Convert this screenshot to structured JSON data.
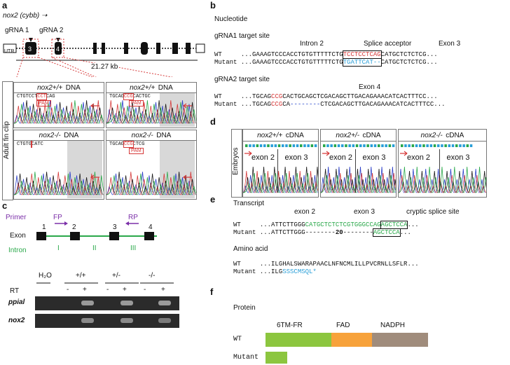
{
  "panel_a": {
    "letter": "a",
    "gene": "nox2 (cybb)",
    "arrow": "➝",
    "grna1": "gRNA 1",
    "grna2": "gRNA 2",
    "utr": "UTR",
    "scale": "21.27 kb",
    "side_label": "Adult fin clip",
    "boxes": [
      {
        "title_gene": "nox2+/+",
        "title_suffix": "DNA",
        "seq": "CTGTCCT",
        "seq_red": "CCT",
        "seq_end": "CAG",
        "pam": "PAM"
      },
      {
        "title_gene": "nox2+/+",
        "title_suffix": "DNA",
        "seq": "TGCAG",
        "seq_red": "CCG",
        "seq_end": "CACTGC",
        "pam": "PAM"
      },
      {
        "title_gene": "nox2-/-",
        "title_suffix": "DNA",
        "seq": "CTGTG",
        "seq_red": "",
        "seq_end": "CATC",
        "pam": ""
      },
      {
        "title_gene": "nox2-/-",
        "title_suffix": "DNA",
        "seq": "TGCAG",
        "seq_red": "CCG",
        "seq_end": "CTCG",
        "pam": "PAM"
      }
    ]
  },
  "panel_b": {
    "letter": "b",
    "heading": "Nucleotide",
    "site1_title": "gRNA1 target site",
    "site1_labels": {
      "intron": "Intron 2",
      "splice": "Splice acceptor",
      "exon": "Exon 3"
    },
    "site1_wt_name": "WT",
    "site1_wt_pre": "...GAAAGTCCCACCTGTGTTTTTCTG",
    "site1_wt_box": "TCCTCCTCAG",
    "site1_wt_post": "CATGCTCTCTCG...",
    "site1_mut_name": "Mutant",
    "site1_mut_pre": "...GAAAGTCCCACCTGTGTTTTTCTG",
    "site1_mut_box": "TGATTCAT--",
    "site1_mut_post": "CATGCTCTCTCG...",
    "site2_title": "gRNA2 target site",
    "site2_exon": "Exon 4",
    "site2_wt_name": "WT",
    "site2_wt_pre": "...TGCAG",
    "site2_wt_red": "CCG",
    "site2_wt_post": "CACTGCAGCTCGACAGCTTGACAGAAACATCACTTTCC...",
    "site2_mut_name": "Mutant",
    "site2_mut_pre": "...TGCAG",
    "site2_mut_red": "CCG",
    "site2_mut_mid": "CA",
    "site2_mut_dash": "--------",
    "site2_mut_post": "CTCGACAGCTTGACAGAAACATCACTTTCC..."
  },
  "panel_c": {
    "letter": "c",
    "primer": "Primer",
    "fp": "FP",
    "rp": "RP",
    "exon": "Exon",
    "intron": "Intron",
    "exons": [
      "1",
      "2",
      "3",
      "4"
    ],
    "introns": [
      "I",
      "II",
      "III"
    ],
    "gel_headers": [
      "H₂O",
      "+/+",
      "+/-",
      "-/-"
    ],
    "rt": "RT",
    "rt_marks": [
      "-",
      "+",
      "-",
      "+",
      "-",
      "+"
    ],
    "genes": [
      "ppial",
      "nox2"
    ]
  },
  "panel_d": {
    "letter": "d",
    "side_label": "Embryos",
    "boxes": [
      {
        "title_gene": "nox2+/+",
        "title_suffix": "cDNA",
        "exon_a": "exon 2",
        "exon_b": "exon 3"
      },
      {
        "title_gene": "nox2+/-",
        "title_suffix": "cDNA",
        "exon_a": "exon 2",
        "exon_b": "exon 3"
      },
      {
        "title_gene": "nox2-/-",
        "title_suffix": "cDNA",
        "exon_a": "exon 2",
        "exon_b": "exon 3"
      }
    ]
  },
  "panel_e": {
    "letter": "e",
    "transcript": "Transcript",
    "labels": {
      "exon2": "exon 2",
      "exon3": "exon 3",
      "cryptic": "cryptic splice site"
    },
    "wt_name": "WT",
    "wt_pre": "...ATTCTTGGG",
    "wt_green": "CATGCTCTCTCGTGGGCCAG",
    "wt_box": "AGCTCCA",
    "wt_post": "...",
    "mut_name": "Mutant",
    "mut_pre": "...ATTCTTGGG",
    "mut_dash1": "--------",
    "mut_num": "20",
    "mut_dash2": "--------",
    "mut_box": "AGCTCCA",
    "mut_post": "...",
    "aa_title": "Amino acid",
    "aa_wt_name": "WT",
    "aa_wt": "...ILGHALSWARAPAACLNFNCMLILLPVCRNLLSFLR...",
    "aa_mut_name": "Mutant",
    "aa_mut_pre": "...ILG",
    "aa_mut_blue": "SSSCMSQL*"
  },
  "panel_f": {
    "letter": "f",
    "title": "Protein",
    "domains": [
      "6TM-FR",
      "FAD",
      "NADPH"
    ],
    "wt": "WT",
    "mutant": "Mutant",
    "colors": {
      "tm": "#8cc63f",
      "fad": "#f7a23b",
      "nadph": "#a08c7c"
    }
  }
}
